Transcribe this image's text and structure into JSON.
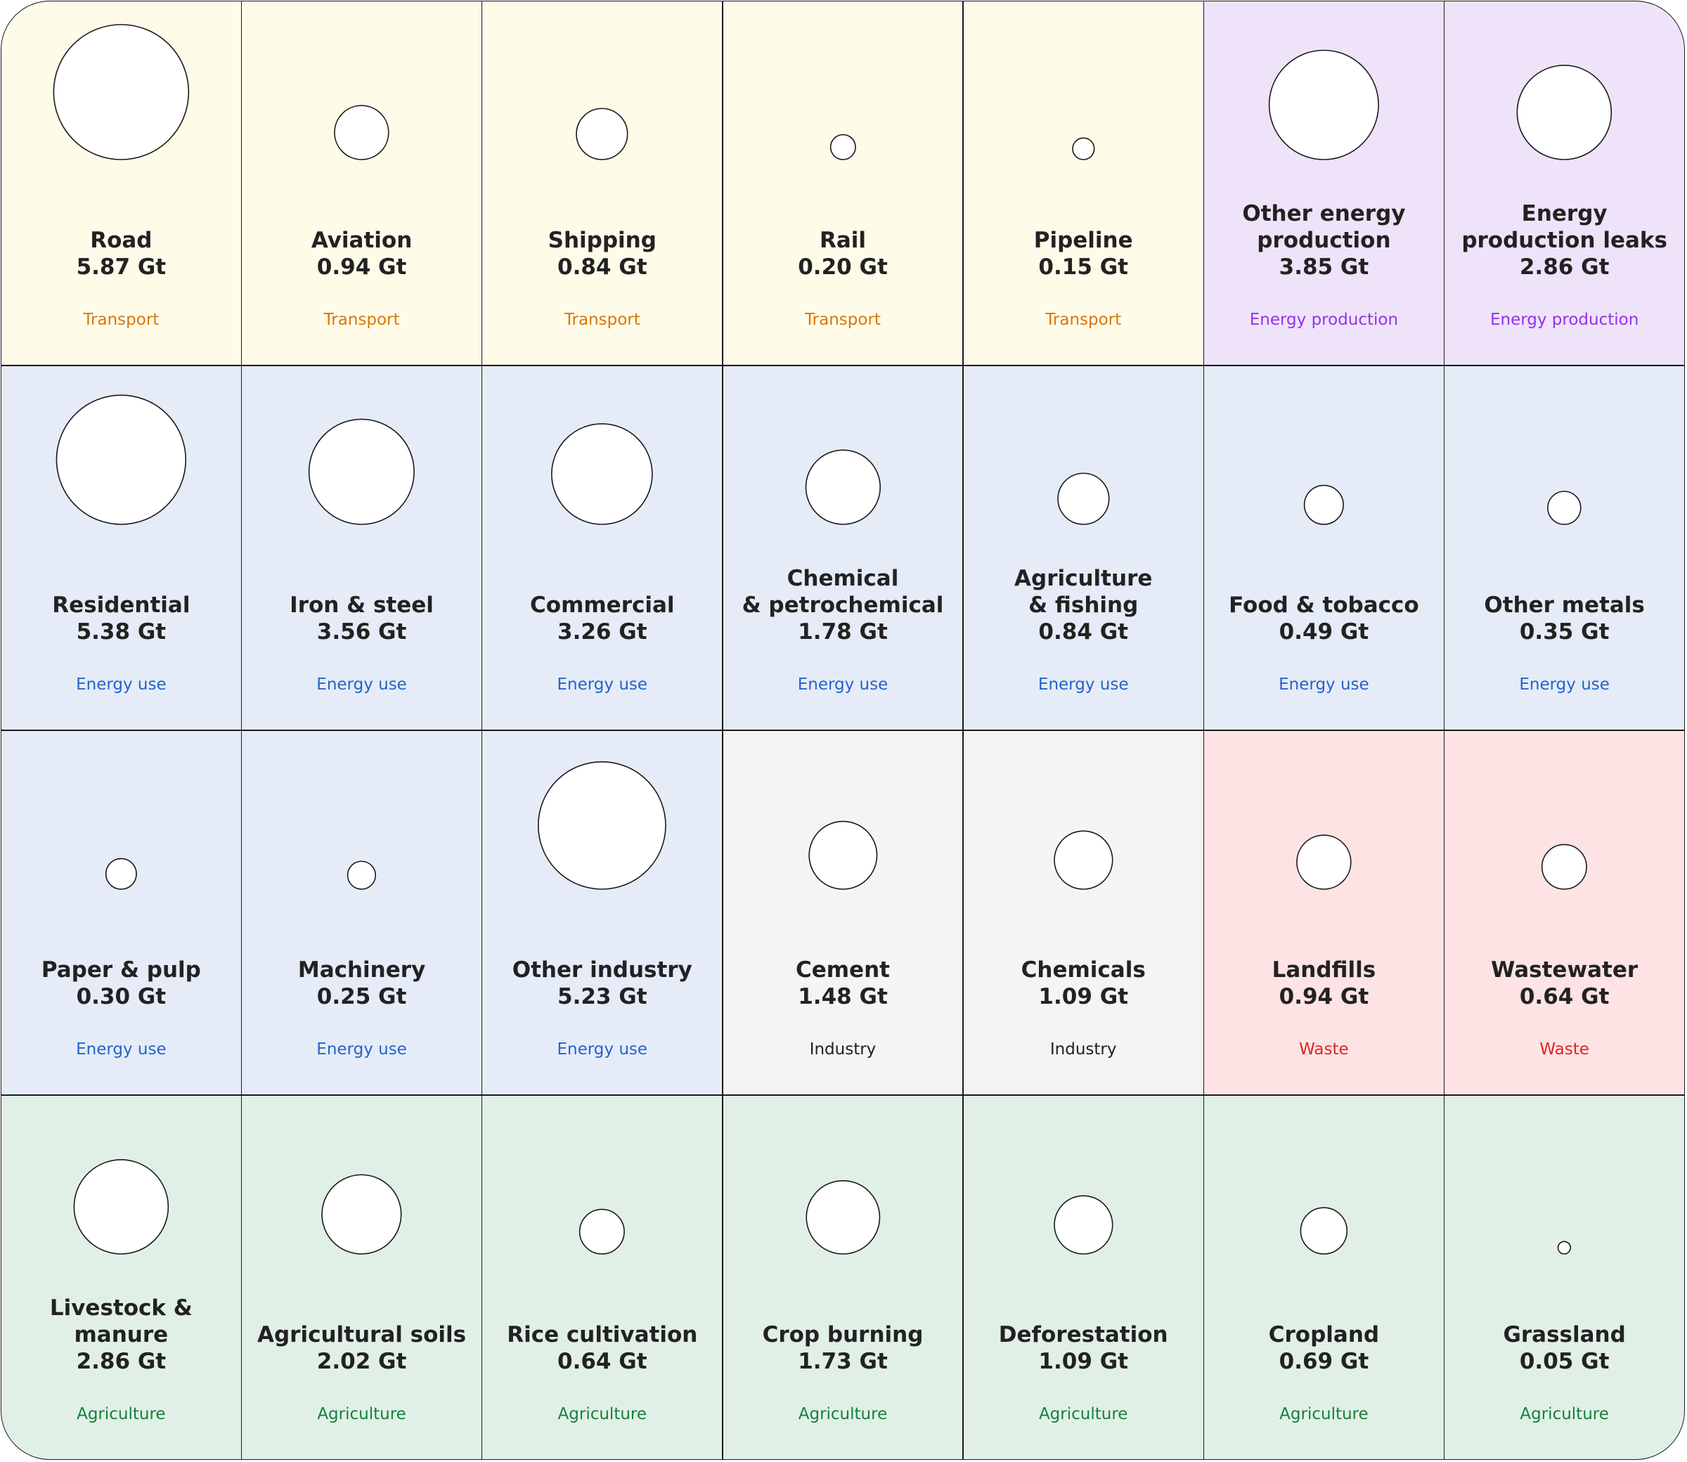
{
  "colors": {
    "Transport": {
      "bg": "#fefbe9",
      "fg": "#d97706"
    },
    "Energy production": {
      "bg": "#efe3f9",
      "fg": "#9333ea"
    },
    "Energy use": {
      "bg": "#e5ecf8",
      "fg": "#2563c9"
    },
    "Industry": {
      "bg": "#f4f4f4",
      "fg": "#222222"
    },
    "Waste": {
      "bg": "#fde3e4",
      "fg": "#dc2626"
    },
    "Agriculture": {
      "bg": "#e1f0e6",
      "fg": "#15803d"
    }
  },
  "chart_data": {
    "type": "bubble-grid",
    "unit": "Gt",
    "columns": 7,
    "items": [
      {
        "label": "Road",
        "value": 5.87,
        "value_text": "5.87 Gt",
        "category": "Transport"
      },
      {
        "label": "Aviation",
        "value": 0.94,
        "value_text": "0.94 Gt",
        "category": "Transport"
      },
      {
        "label": "Shipping",
        "value": 0.84,
        "value_text": "0.84 Gt",
        "category": "Transport"
      },
      {
        "label": "Rail",
        "value": 0.2,
        "value_text": "0.20 Gt",
        "category": "Transport"
      },
      {
        "label": "Pipeline",
        "value": 0.15,
        "value_text": "0.15 Gt",
        "category": "Transport"
      },
      {
        "label": "Other energy\nproduction",
        "value": 3.85,
        "value_text": "3.85 Gt",
        "category": "Energy production"
      },
      {
        "label": "Energy\nproduction leaks",
        "value": 2.86,
        "value_text": "2.86 Gt",
        "category": "Energy production"
      },
      {
        "label": "Residential",
        "value": 5.38,
        "value_text": "5.38 Gt",
        "category": "Energy use"
      },
      {
        "label": "Iron & steel",
        "value": 3.56,
        "value_text": "3.56 Gt",
        "category": "Energy use"
      },
      {
        "label": "Commercial",
        "value": 3.26,
        "value_text": "3.26 Gt",
        "category": "Energy use"
      },
      {
        "label": "Chemical\n& petrochemical",
        "value": 1.78,
        "value_text": "1.78 Gt",
        "category": "Energy use"
      },
      {
        "label": "Agriculture\n& fishing",
        "value": 0.84,
        "value_text": "0.84 Gt",
        "category": "Energy use"
      },
      {
        "label": "Food & tobacco",
        "value": 0.49,
        "value_text": "0.49 Gt",
        "category": "Energy use"
      },
      {
        "label": "Other metals",
        "value": 0.35,
        "value_text": "0.35 Gt",
        "category": "Energy use"
      },
      {
        "label": "Paper & pulp",
        "value": 0.3,
        "value_text": "0.30 Gt",
        "category": "Energy use"
      },
      {
        "label": "Machinery",
        "value": 0.25,
        "value_text": "0.25 Gt",
        "category": "Energy use"
      },
      {
        "label": "Other industry",
        "value": 5.23,
        "value_text": "5.23 Gt",
        "category": "Energy use"
      },
      {
        "label": "Cement",
        "value": 1.48,
        "value_text": "1.48 Gt",
        "category": "Industry"
      },
      {
        "label": "Chemicals",
        "value": 1.09,
        "value_text": "1.09 Gt",
        "category": "Industry"
      },
      {
        "label": "Landfills",
        "value": 0.94,
        "value_text": "0.94 Gt",
        "category": "Waste"
      },
      {
        "label": "Wastewater",
        "value": 0.64,
        "value_text": "0.64 Gt",
        "category": "Waste"
      },
      {
        "label": "Livestock & manure",
        "value": 2.86,
        "value_text": "2.86 Gt",
        "category": "Agriculture"
      },
      {
        "label": "Agricultural soils",
        "value": 2.02,
        "value_text": "2.02 Gt",
        "category": "Agriculture"
      },
      {
        "label": "Rice cultivation",
        "value": 0.64,
        "value_text": "0.64 Gt",
        "category": "Agriculture"
      },
      {
        "label": "Crop burning",
        "value": 1.73,
        "value_text": "1.73 Gt",
        "category": "Agriculture"
      },
      {
        "label": "Deforestation",
        "value": 1.09,
        "value_text": "1.09 Gt",
        "category": "Agriculture"
      },
      {
        "label": "Cropland",
        "value": 0.69,
        "value_text": "0.69 Gt",
        "category": "Agriculture"
      },
      {
        "label": "Grassland",
        "value": 0.05,
        "value_text": "0.05 Gt",
        "category": "Agriculture"
      }
    ]
  }
}
